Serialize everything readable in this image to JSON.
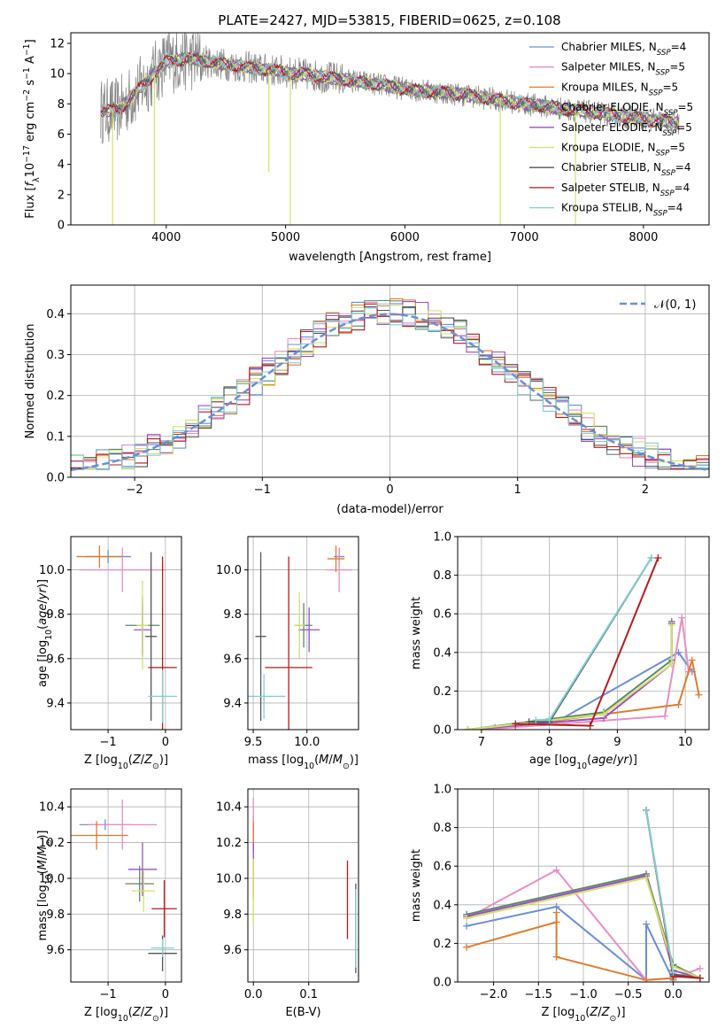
{
  "figure_title": "PLATE=2427, MJD=53815, FIBERID=0625, z=0.108",
  "colors": {
    "chabrier_miles": "#6a8fd8",
    "salpeter_miles": "#e98ec3",
    "kroupa_miles": "#e07b2c",
    "chabrier_elodie": "#5a8a6a",
    "salpeter_elodie": "#9b4fc4",
    "kroupa_elodie": "#d6e26a",
    "chabrier_stelib": "#555555",
    "salpeter_stelib": "#b51c1c",
    "kroupa_stelib": "#7fd0d6",
    "data_spectrum": "#808080",
    "normal_curve": "#6a8fd8",
    "grid": "#b0b0b0"
  },
  "chart_data": [
    {
      "type": "line",
      "panel": "spectrum",
      "title": "PLATE=2427, MJD=53815, FIBERID=0625, z=0.108",
      "xlabel": "wavelength [Angstrom, rest frame]",
      "ylabel": "Flux [f_λ 10^-17 erg cm^-2 s^-1 A^-1]",
      "xlim": [
        3200,
        8550
      ],
      "ylim": [
        0,
        12.7
      ],
      "xticks": [
        "4000",
        "5000",
        "6000",
        "7000",
        "8000"
      ],
      "yticks": [
        "0",
        "2",
        "4",
        "6",
        "8",
        "10",
        "12"
      ],
      "grid": false,
      "legend_placement": "upper-right",
      "legend": [
        {
          "label": "Chabrier MILES, N",
          "sub": "SSP",
          "suffix": "=4",
          "key": "chabrier_miles"
        },
        {
          "label": "Salpeter MILES, N",
          "sub": "SSP",
          "suffix": "=5",
          "key": "salpeter_miles"
        },
        {
          "label": "Kroupa MILES, N",
          "sub": "SSP",
          "suffix": "=5",
          "key": "kroupa_miles"
        },
        {
          "label": "Chabrier ELODIE, N",
          "sub": "SSP",
          "suffix": "=5",
          "key": "chabrier_elodie"
        },
        {
          "label": "Salpeter ELODIE, N",
          "sub": "SSP",
          "suffix": "=5",
          "key": "salpeter_elodie"
        },
        {
          "label": "Kroupa ELODIE, N",
          "sub": "SSP",
          "suffix": "=5",
          "key": "kroupa_elodie"
        },
        {
          "label": "Chabrier STELIB, N",
          "sub": "SSP",
          "suffix": "=4",
          "key": "chabrier_stelib"
        },
        {
          "label": "Salpeter STELIB, N",
          "sub": "SSP",
          "suffix": "=4",
          "key": "salpeter_stelib"
        },
        {
          "label": "Kroupa STELIB, N",
          "sub": "SSP",
          "suffix": "=4",
          "key": "kroupa_stelib"
        }
      ],
      "continuum": {
        "x": [
          3450,
          3600,
          3750,
          3900,
          4000,
          4200,
          4500,
          5000,
          5500,
          6000,
          6500,
          7000,
          7500,
          8000,
          8300
        ],
        "y": [
          7.5,
          7.6,
          8.8,
          10.0,
          10.8,
          11.0,
          10.6,
          10.1,
          9.6,
          9.0,
          8.6,
          8.0,
          7.5,
          7.0,
          6.7
        ]
      },
      "dips": [
        {
          "x": 3550,
          "y": 0
        },
        {
          "x": 3900,
          "y": 0
        },
        {
          "x": 4860,
          "y": 3.5
        },
        {
          "x": 5040,
          "y": 0
        },
        {
          "x": 6800,
          "y": 0
        },
        {
          "x": 7430,
          "y": 0
        }
      ]
    },
    {
      "type": "line",
      "panel": "residuals",
      "xlabel": "(data-model)/error",
      "ylabel": "Normed distribution",
      "xlim": [
        -2.5,
        2.5
      ],
      "ylim": [
        0,
        0.47
      ],
      "xticks": [
        "−2",
        "−1",
        "0",
        "1",
        "2"
      ],
      "yticks": [
        "0.0",
        "0.1",
        "0.2",
        "0.3",
        "0.4"
      ],
      "grid": true,
      "legend_placement": "upper-right",
      "legend": [
        {
          "label": "𝒩(0, 1)",
          "key": "normal_curve"
        }
      ],
      "bin_width": 0.1,
      "x_range": [
        -2.5,
        2.5
      ]
    },
    {
      "type": "scatter",
      "panel": "age-vs-Z",
      "xlabel": "Z [log10(Z/Z⊙)]",
      "ylabel": "age [log10(age/yr)]",
      "xlim": [
        -1.65,
        0.28
      ],
      "ylim": [
        9.28,
        10.15
      ],
      "xticks": [
        "−1",
        "0"
      ],
      "yticks": [
        "9.4",
        "9.6",
        "9.8",
        "10.0"
      ],
      "grid": true,
      "points": [
        {
          "key": "chabrier_miles",
          "x": -1.0,
          "xerr": 0.4,
          "y": 10.06,
          "yerr": 0.03
        },
        {
          "key": "salpeter_miles",
          "x": -0.75,
          "xerr": 0.75,
          "y": 10.0,
          "yerr": 0.1
        },
        {
          "key": "kroupa_miles",
          "x": -1.15,
          "xerr": 0.4,
          "y": 10.06,
          "yerr": 0.05
        },
        {
          "key": "chabrier_elodie",
          "x": -0.4,
          "xerr": 0.3,
          "y": 9.75,
          "yerr": 0.13
        },
        {
          "key": "salpeter_elodie",
          "x": -0.4,
          "xerr": 0.15,
          "y": 9.73,
          "yerr": 0.12
        },
        {
          "key": "kroupa_elodie",
          "x": -0.4,
          "xerr": 0.1,
          "y": 9.75,
          "yerr": 0.2
        },
        {
          "key": "chabrier_stelib",
          "x": -0.25,
          "xerr": 0.1,
          "y": 9.7,
          "yerr": 0.38
        },
        {
          "key": "salpeter_stelib",
          "x": -0.05,
          "xerr": 0.25,
          "y": 9.56,
          "yerr": 0.5
        },
        {
          "key": "kroupa_stelib",
          "x": -0.05,
          "xerr": 0.25,
          "y": 9.43,
          "yerr": 0.12
        }
      ]
    },
    {
      "type": "scatter",
      "panel": "age-vs-mass",
      "xlabel": "mass [log10(M/M⊙)]",
      "ylabel": "",
      "xlim": [
        9.45,
        10.48
      ],
      "ylim": [
        9.28,
        10.15
      ],
      "xticks": [
        "9.5",
        "10.0"
      ],
      "yticks": [
        "9.4",
        "9.6",
        "9.8",
        "10.0"
      ],
      "grid": true,
      "points": [
        {
          "key": "chabrier_miles",
          "x": 10.3,
          "xerr": 0.05,
          "y": 10.06,
          "yerr": 0.04
        },
        {
          "key": "salpeter_miles",
          "x": 10.3,
          "xerr": 0.12,
          "y": 10.0,
          "yerr": 0.1
        },
        {
          "key": "kroupa_miles",
          "x": 10.27,
          "xerr": 0.08,
          "y": 10.05,
          "yerr": 0.06
        },
        {
          "key": "chabrier_elodie",
          "x": 9.97,
          "xerr": 0.08,
          "y": 9.75,
          "yerr": 0.1
        },
        {
          "key": "salpeter_elodie",
          "x": 10.02,
          "xerr": 0.1,
          "y": 9.73,
          "yerr": 0.1
        },
        {
          "key": "kroupa_elodie",
          "x": 9.93,
          "xerr": 0.05,
          "y": 9.75,
          "yerr": 0.15
        },
        {
          "key": "chabrier_stelib",
          "x": 9.57,
          "xerr": 0.05,
          "y": 9.7,
          "yerr": 0.38
        },
        {
          "key": "salpeter_stelib",
          "x": 9.83,
          "xerr": 0.22,
          "y": 9.56,
          "yerr": 0.5
        },
        {
          "key": "kroupa_stelib",
          "x": 9.6,
          "xerr": 0.2,
          "y": 9.43,
          "yerr": 0.1
        }
      ]
    },
    {
      "type": "line",
      "panel": "mass-weight-vs-age",
      "xlabel": "age [log10(age/yr)]",
      "ylabel": "mass weight",
      "xlim": [
        6.65,
        10.35
      ],
      "ylim": [
        0,
        1.0
      ],
      "xticks": [
        "7",
        "8",
        "9",
        "10"
      ],
      "yticks": [
        "0.0",
        "0.2",
        "0.4",
        "0.6",
        "0.8",
        "1.0"
      ],
      "grid": true,
      "series": [
        {
          "key": "chabrier_miles",
          "x": [
            7.2,
            8.1,
            9.9,
            10.1
          ],
          "y": [
            0.01,
            0.04,
            0.4,
            0.3
          ]
        },
        {
          "key": "salpeter_miles",
          "x": [
            7.0,
            9.7,
            9.95,
            10.05
          ],
          "y": [
            0.0,
            0.07,
            0.58,
            0.3
          ]
        },
        {
          "key": "kroupa_miles",
          "x": [
            7.5,
            9.9,
            10.1,
            10.2
          ],
          "y": [
            0.02,
            0.13,
            0.36,
            0.18
          ]
        },
        {
          "key": "chabrier_elodie",
          "x": [
            6.8,
            8.8,
            9.8,
            9.8
          ],
          "y": [
            0.0,
            0.09,
            0.36,
            0.56
          ]
        },
        {
          "key": "salpeter_elodie",
          "x": [
            6.8,
            8.8,
            9.8,
            9.8
          ],
          "y": [
            0.0,
            0.06,
            0.34,
            0.55
          ]
        },
        {
          "key": "kroupa_elodie",
          "x": [
            6.8,
            8.8,
            9.8,
            9.8
          ],
          "y": [
            0.0,
            0.08,
            0.34,
            0.54
          ]
        },
        {
          "key": "chabrier_stelib",
          "x": [
            7.7,
            8.0,
            9.5
          ],
          "y": [
            0.04,
            0.04,
            0.89
          ]
        },
        {
          "key": "salpeter_stelib",
          "x": [
            7.5,
            8.6,
            9.6
          ],
          "y": [
            0.03,
            0.02,
            0.89
          ]
        },
        {
          "key": "kroupa_stelib",
          "x": [
            7.8,
            8.0,
            9.5
          ],
          "y": [
            0.05,
            0.05,
            0.89
          ]
        }
      ]
    },
    {
      "type": "scatter",
      "panel": "mass-vs-Z",
      "xlabel": "Z [log10(Z/Z⊙)]",
      "ylabel": "mass [log10(M/M⊙)]",
      "xlim": [
        -1.65,
        0.28
      ],
      "ylim": [
        9.42,
        10.5
      ],
      "xticks": [
        "−1",
        "0"
      ],
      "yticks": [
        "9.6",
        "9.8",
        "10.0",
        "10.2",
        "10.4"
      ],
      "grid": true,
      "points": [
        {
          "key": "chabrier_miles",
          "x": -1.05,
          "xerr": 0.45,
          "y": 10.3,
          "yerr": 0.03
        },
        {
          "key": "salpeter_miles",
          "x": -0.75,
          "xerr": 0.6,
          "y": 10.3,
          "yerr": 0.14
        },
        {
          "key": "kroupa_miles",
          "x": -1.2,
          "xerr": 0.55,
          "y": 10.24,
          "yerr": 0.08
        },
        {
          "key": "chabrier_elodie",
          "x": -0.45,
          "xerr": 0.25,
          "y": 9.97,
          "yerr": 0.1
        },
        {
          "key": "salpeter_elodie",
          "x": -0.4,
          "xerr": 0.25,
          "y": 10.05,
          "yerr": 0.15
        },
        {
          "key": "kroupa_elodie",
          "x": -0.38,
          "xerr": 0.2,
          "y": 9.93,
          "yerr": 0.12
        },
        {
          "key": "chabrier_stelib",
          "x": -0.05,
          "xerr": 0.25,
          "y": 9.58,
          "yerr": 0.1
        },
        {
          "key": "salpeter_stelib",
          "x": -0.02,
          "xerr": 0.22,
          "y": 9.83,
          "yerr": 0.16
        },
        {
          "key": "kroupa_stelib",
          "x": -0.05,
          "xerr": 0.2,
          "y": 9.61,
          "yerr": 0.05
        }
      ]
    },
    {
      "type": "scatter",
      "panel": "mass-vs-EBV",
      "xlabel": "E(B-V)",
      "ylabel": "",
      "xlim": [
        -0.01,
        0.19
      ],
      "ylim": [
        9.42,
        10.5
      ],
      "xticks": [
        "0.0",
        "0.1"
      ],
      "yticks": [
        "9.6",
        "9.8",
        "10.0",
        "10.2",
        "10.4"
      ],
      "grid": true,
      "points": [
        {
          "key": "chabrier_miles",
          "x": 0.0,
          "y": 10.3,
          "yerr": 0.05
        },
        {
          "key": "salpeter_miles",
          "x": 0.0,
          "y": 10.3,
          "yerr": 0.15
        },
        {
          "key": "kroupa_miles",
          "x": 0.0,
          "y": 10.24,
          "yerr": 0.08
        },
        {
          "key": "chabrier_elodie",
          "x": 0.0,
          "y": 9.97,
          "yerr": 0.1
        },
        {
          "key": "salpeter_elodie",
          "x": 0.0,
          "y": 10.05,
          "yerr": 0.15
        },
        {
          "key": "kroupa_elodie",
          "x": 0.0,
          "y": 9.93,
          "yerr": 0.18
        },
        {
          "key": "chabrier_stelib",
          "x": 0.185,
          "y": 9.72,
          "yerr": 0.25
        },
        {
          "key": "salpeter_stelib",
          "x": 0.17,
          "y": 9.88,
          "yerr": 0.22
        },
        {
          "key": "kroupa_stelib",
          "x": 0.185,
          "y": 9.72,
          "yerr": 0.22
        }
      ]
    },
    {
      "type": "line",
      "panel": "mass-weight-vs-Z",
      "xlabel": "Z [log10(Z/Z⊙)]",
      "ylabel": "mass weight",
      "xlim": [
        -2.4,
        0.4
      ],
      "ylim": [
        0,
        1.0
      ],
      "xticks": [
        "−2.0",
        "−1.5",
        "−1.0",
        "−0.5",
        "0.0"
      ],
      "yticks": [
        "0.0",
        "0.2",
        "0.4",
        "0.6",
        "0.8",
        "1.0"
      ],
      "grid": true,
      "series": [
        {
          "key": "chabrier_miles",
          "x": [
            -2.3,
            -1.3,
            -0.3,
            -0.3,
            0.0,
            0.0
          ],
          "y": [
            0.29,
            0.39,
            0.01,
            0.3,
            0.01,
            0.04
          ]
        },
        {
          "key": "salpeter_miles",
          "x": [
            -2.3,
            -1.3,
            -0.3,
            0.0,
            0.3
          ],
          "y": [
            0.33,
            0.58,
            0.01,
            0.02,
            0.07
          ]
        },
        {
          "key": "kroupa_miles",
          "x": [
            -2.3,
            -1.3,
            -1.3,
            -1.3,
            -0.3,
            0.0
          ],
          "y": [
            0.18,
            0.31,
            0.36,
            0.13,
            0.01,
            0.02
          ]
        },
        {
          "key": "chabrier_elodie",
          "x": [
            -2.3,
            -0.3,
            0.0,
            0.3
          ],
          "y": [
            0.35,
            0.56,
            0.09,
            0.02
          ]
        },
        {
          "key": "salpeter_elodie",
          "x": [
            -2.3,
            -0.3,
            0.0,
            0.3
          ],
          "y": [
            0.34,
            0.55,
            0.06,
            0.02
          ]
        },
        {
          "key": "kroupa_elodie",
          "x": [
            -2.3,
            -0.3,
            0.0,
            0.3
          ],
          "y": [
            0.33,
            0.54,
            0.08,
            0.02
          ]
        },
        {
          "key": "chabrier_stelib",
          "x": [
            -0.3,
            0.0,
            0.3
          ],
          "y": [
            0.89,
            0.04,
            0.02
          ]
        },
        {
          "key": "salpeter_stelib",
          "x": [
            -0.3,
            0.0,
            0.3
          ],
          "y": [
            0.89,
            0.03,
            0.02
          ]
        },
        {
          "key": "kroupa_stelib",
          "x": [
            -0.3,
            0.0
          ],
          "y": [
            0.89,
            0.05
          ]
        }
      ]
    }
  ]
}
